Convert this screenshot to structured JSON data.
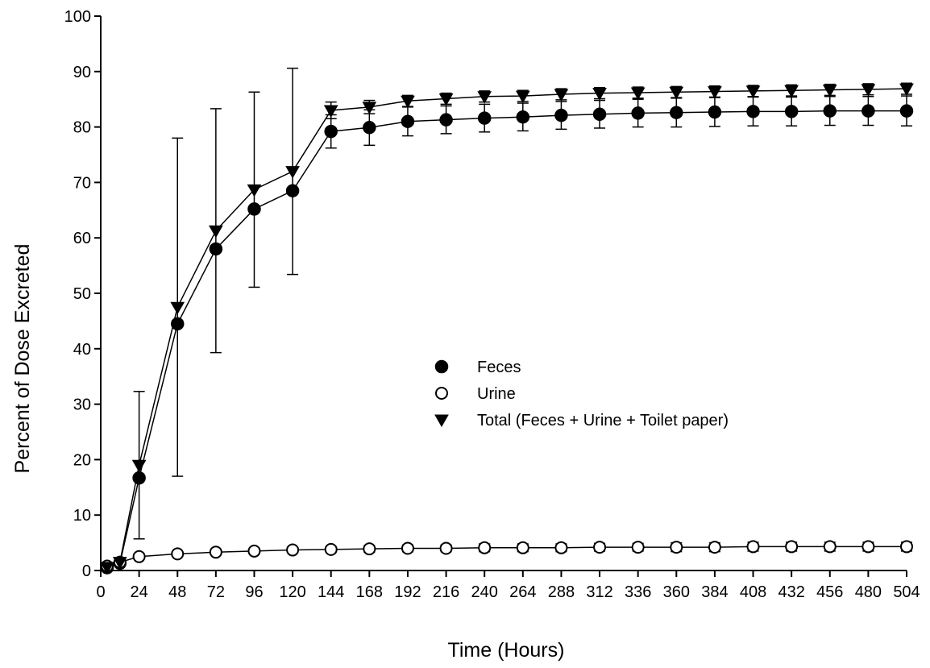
{
  "chart_data": {
    "type": "line",
    "xlabel": "Time (Hours)",
    "ylabel": "Percent of Dose Excreted",
    "xlim": [
      0,
      504
    ],
    "ylim": [
      0,
      100
    ],
    "xticks": [
      0,
      24,
      48,
      72,
      96,
      120,
      144,
      168,
      192,
      216,
      240,
      264,
      288,
      312,
      336,
      360,
      384,
      408,
      432,
      456,
      480,
      504
    ],
    "yticks": [
      0,
      10,
      20,
      30,
      40,
      50,
      60,
      70,
      80,
      90,
      100
    ],
    "grid": false,
    "legend_position": "center",
    "x": [
      4,
      12,
      24,
      48,
      72,
      96,
      120,
      144,
      168,
      192,
      216,
      240,
      264,
      288,
      312,
      336,
      360,
      384,
      408,
      432,
      456,
      480,
      504
    ],
    "series": [
      {
        "name": "Feces",
        "marker": "filled-circle",
        "values": [
          0.5,
          1.3,
          16.7,
          44.5,
          58.0,
          65.2,
          68.5,
          79.2,
          79.9,
          81.0,
          81.3,
          81.6,
          81.8,
          82.1,
          82.3,
          82.5,
          82.6,
          82.7,
          82.8,
          82.8,
          82.9,
          82.9,
          82.9
        ],
        "error": [
          0,
          0,
          0,
          0,
          0,
          0,
          0,
          3.0,
          3.2,
          2.6,
          2.5,
          2.5,
          2.5,
          2.5,
          2.5,
          2.5,
          2.6,
          2.6,
          2.6,
          2.6,
          2.6,
          2.6,
          2.7
        ]
      },
      {
        "name": "Urine",
        "marker": "open-circle",
        "values": [
          0.8,
          1.5,
          2.5,
          3.0,
          3.3,
          3.5,
          3.7,
          3.8,
          3.9,
          4.0,
          4.0,
          4.1,
          4.1,
          4.1,
          4.2,
          4.2,
          4.2,
          4.2,
          4.3,
          4.3,
          4.3,
          4.3,
          4.3
        ],
        "error": [
          0,
          0,
          0,
          0,
          0,
          0,
          0.5,
          0.5,
          0.6,
          0.6,
          0.6,
          0.7,
          0.7,
          0.7,
          0.7,
          0.7,
          0.8,
          0.8,
          0.8,
          0.8,
          0.8,
          0.8,
          0.8
        ]
      },
      {
        "name": "Total (Feces + Urine + Toilet paper)",
        "marker": "filled-triangle-down",
        "values": [
          0.6,
          1.5,
          19.0,
          47.5,
          61.3,
          68.7,
          72.0,
          83.0,
          83.6,
          84.7,
          85.1,
          85.5,
          85.6,
          85.9,
          86.1,
          86.2,
          86.3,
          86.4,
          86.5,
          86.6,
          86.7,
          86.8,
          86.9
        ],
        "error": [
          0,
          0,
          13.3,
          30.5,
          22.0,
          17.6,
          18.6,
          1.5,
          1.2,
          1.0,
          1.0,
          1.0,
          1.0,
          1.0,
          1.0,
          1.0,
          1.0,
          1.0,
          1.0,
          1.0,
          1.0,
          1.0,
          1.0
        ]
      }
    ],
    "colors": {
      "line": "#000000",
      "background": "#ffffff"
    }
  }
}
